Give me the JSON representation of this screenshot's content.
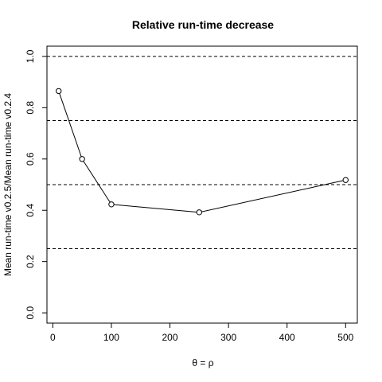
{
  "chart_data": {
    "type": "line",
    "title": "Relative run-time decrease",
    "xlabel": "θ = ρ",
    "ylabel": "Mean run-time v0.2.5/Mean run-time v0.2.4",
    "x": [
      10,
      50,
      100,
      250,
      500
    ],
    "values": [
      0.865,
      0.6,
      0.423,
      0.392,
      0.518
    ],
    "xlim": [
      0,
      500
    ],
    "ylim": [
      0.0,
      1.0
    ],
    "xticks": [
      0,
      100,
      200,
      300,
      400,
      500
    ],
    "yticks": [
      0.0,
      0.2,
      0.4,
      0.6,
      0.8,
      1.0
    ],
    "xtick_labels": [
      "0",
      "100",
      "200",
      "300",
      "400",
      "500"
    ],
    "ytick_labels": [
      "0.0",
      "0.2",
      "0.4",
      "0.6",
      "0.8",
      "1.0"
    ],
    "reference_lines": [
      0.25,
      0.5,
      0.75,
      1.0
    ],
    "marker": "open-circle",
    "grid": false
  }
}
